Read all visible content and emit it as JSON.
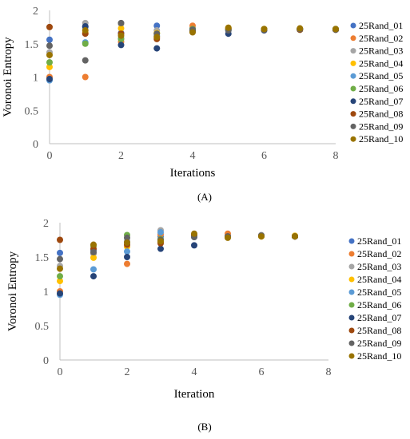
{
  "chart_data": [
    {
      "type": "scatter",
      "panel_label": "(A)",
      "xlabel": "Iterations",
      "ylabel": "Voronoi Entropy",
      "xlim": [
        0,
        8
      ],
      "ylim": [
        0,
        2
      ],
      "xticks": [
        "0",
        "2",
        "4",
        "6",
        "8"
      ],
      "yticks": [
        "0",
        "0.5",
        "1",
        "1.5",
        "2"
      ],
      "grid": false,
      "legend_position": "right",
      "series": [
        {
          "name": "25Rand_01",
          "color": "#4472C4",
          "x": [
            0,
            1,
            2,
            3,
            4,
            5,
            6,
            7,
            8
          ],
          "y": [
            1.56,
            1.75,
            1.66,
            1.77,
            1.73,
            1.71,
            1.71,
            1.72,
            1.72
          ]
        },
        {
          "name": "25Rand_02",
          "color": "#ED7D31",
          "x": [
            0,
            1,
            2,
            3,
            4,
            5,
            6,
            7,
            8
          ],
          "y": [
            1.0,
            1.0,
            1.53,
            1.6,
            1.77,
            1.73,
            1.72,
            1.72,
            1.71
          ]
        },
        {
          "name": "25Rand_03",
          "color": "#A5A5A5",
          "x": [
            0,
            1,
            2,
            3,
            4,
            5,
            6,
            7,
            8
          ],
          "y": [
            1.37,
            1.81,
            1.8,
            1.7,
            1.68,
            1.72,
            1.71,
            1.72,
            1.72
          ]
        },
        {
          "name": "25Rand_04",
          "color": "#FFC000",
          "x": [
            0,
            1,
            2,
            3,
            4,
            5,
            6,
            7,
            8
          ],
          "y": [
            1.15,
            1.66,
            1.73,
            1.66,
            1.7,
            1.74,
            1.72,
            1.71,
            1.71
          ]
        },
        {
          "name": "25Rand_05",
          "color": "#5B9BD5",
          "x": [
            0,
            1,
            2,
            3,
            4,
            5,
            6,
            7,
            8
          ],
          "y": [
            0.95,
            1.52,
            1.58,
            1.62,
            1.69,
            1.7,
            1.71,
            1.72,
            1.71
          ]
        },
        {
          "name": "25Rand_06",
          "color": "#70AD47",
          "x": [
            0,
            1,
            2,
            3,
            4,
            5,
            6,
            7,
            8
          ],
          "y": [
            1.22,
            1.5,
            1.57,
            1.65,
            1.72,
            1.71,
            1.72,
            1.71,
            1.72
          ]
        },
        {
          "name": "25Rand_07",
          "color": "#264478",
          "x": [
            0,
            1,
            2,
            3,
            4,
            5,
            6,
            7,
            8
          ],
          "y": [
            0.97,
            1.76,
            1.48,
            1.43,
            1.69,
            1.65,
            1.7,
            1.71,
            1.71
          ]
        },
        {
          "name": "25Rand_08",
          "color": "#9E480E",
          "x": [
            0,
            1,
            2,
            3,
            4,
            5,
            6,
            7,
            8
          ],
          "y": [
            1.75,
            1.65,
            1.65,
            1.57,
            1.7,
            1.72,
            1.71,
            1.71,
            1.71
          ]
        },
        {
          "name": "25Rand_09",
          "color": "#636363",
          "x": [
            0,
            1,
            2,
            3,
            4,
            5,
            6,
            7,
            8
          ],
          "y": [
            1.47,
            1.25,
            1.81,
            1.65,
            1.71,
            1.7,
            1.71,
            1.72,
            1.71
          ]
        },
        {
          "name": "25Rand_10",
          "color": "#997300",
          "x": [
            0,
            1,
            2,
            3,
            4,
            5,
            6,
            7,
            8
          ],
          "y": [
            1.33,
            1.7,
            1.62,
            1.6,
            1.67,
            1.74,
            1.72,
            1.73,
            1.72
          ]
        }
      ]
    },
    {
      "type": "scatter",
      "panel_label": "(B)",
      "xlabel": "Iteration",
      "ylabel": "Voronoi Entropy",
      "xlim": [
        0,
        8
      ],
      "ylim": [
        0,
        2
      ],
      "xticks": [
        "0",
        "2",
        "4",
        "6",
        "8"
      ],
      "yticks": [
        "0",
        "0.5",
        "1",
        "1.5",
        "2"
      ],
      "grid": false,
      "legend_position": "right",
      "series": [
        {
          "name": "25Rand_01",
          "color": "#4472C4",
          "x": [
            0,
            1,
            2,
            3,
            4,
            5,
            6,
            7
          ],
          "y": [
            1.56,
            1.6,
            1.72,
            1.8,
            1.8,
            1.8,
            1.81,
            1.8
          ]
        },
        {
          "name": "25Rand_02",
          "color": "#ED7D31",
          "x": [
            0,
            1,
            2,
            3,
            4,
            5,
            6,
            7
          ],
          "y": [
            1.0,
            1.55,
            1.4,
            1.83,
            1.81,
            1.84,
            1.81,
            1.8
          ]
        },
        {
          "name": "25Rand_03",
          "color": "#A5A5A5",
          "x": [
            0,
            1,
            2,
            3,
            4,
            5,
            6,
            7
          ],
          "y": [
            1.37,
            1.55,
            1.73,
            1.89,
            1.8,
            1.79,
            1.82,
            1.81
          ]
        },
        {
          "name": "25Rand_04",
          "color": "#FFC000",
          "x": [
            0,
            1,
            2,
            3,
            4,
            5,
            6,
            7
          ],
          "y": [
            1.15,
            1.49,
            1.65,
            1.72,
            1.83,
            1.8,
            1.8,
            1.81
          ]
        },
        {
          "name": "25Rand_05",
          "color": "#5B9BD5",
          "x": [
            0,
            1,
            2,
            3,
            4,
            5,
            6,
            7
          ],
          "y": [
            0.95,
            1.32,
            1.58,
            1.86,
            1.79,
            1.8,
            1.81,
            1.8
          ]
        },
        {
          "name": "25Rand_06",
          "color": "#70AD47",
          "x": [
            0,
            1,
            2,
            3,
            4,
            5,
            6,
            7
          ],
          "y": [
            1.22,
            1.66,
            1.82,
            1.76,
            1.82,
            1.79,
            1.81,
            1.8
          ]
        },
        {
          "name": "25Rand_07",
          "color": "#264478",
          "x": [
            0,
            1,
            2,
            3,
            4,
            5,
            6,
            7
          ],
          "y": [
            0.97,
            1.22,
            1.5,
            1.62,
            1.67,
            1.8,
            1.81,
            1.8
          ]
        },
        {
          "name": "25Rand_08",
          "color": "#9E480E",
          "x": [
            0,
            1,
            2,
            3,
            4,
            5,
            6,
            7
          ],
          "y": [
            1.75,
            1.62,
            1.68,
            1.7,
            1.82,
            1.8,
            1.81,
            1.8
          ]
        },
        {
          "name": "25Rand_09",
          "color": "#636363",
          "x": [
            0,
            1,
            2,
            3,
            4,
            5,
            6,
            7
          ],
          "y": [
            1.47,
            1.57,
            1.78,
            1.75,
            1.79,
            1.8,
            1.81,
            1.8
          ]
        },
        {
          "name": "25Rand_10",
          "color": "#997300",
          "x": [
            0,
            1,
            2,
            3,
            4,
            5,
            6,
            7
          ],
          "y": [
            1.33,
            1.68,
            1.71,
            1.73,
            1.84,
            1.78,
            1.8,
            1.8
          ]
        }
      ]
    }
  ]
}
